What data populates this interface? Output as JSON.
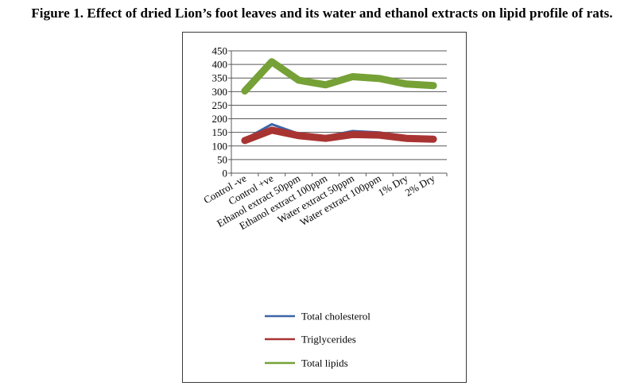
{
  "figure": {
    "title": "Figure 1. Effect of dried Lion’s foot leaves and its water and ethanol extracts on lipid profile of rats."
  },
  "chart_data": {
    "type": "line",
    "title": "",
    "xlabel": "",
    "ylabel": "",
    "categories": [
      "Control -ve",
      "Control +ve",
      "Ethanol extract 50ppm",
      "Ethanol extract 100ppm",
      "Water extract 50ppm",
      "Water extract 100ppm",
      "1% Dry",
      "2% Dry"
    ],
    "ylim": [
      0,
      450
    ],
    "yticks": [
      0,
      50,
      100,
      150,
      200,
      250,
      300,
      350,
      400,
      450
    ],
    "grid": "horizontal",
    "legend_position": "bottom",
    "series": [
      {
        "name": "Total cholesterol",
        "color": "#3c64a8",
        "values": [
          125,
          180,
          145,
          135,
          155,
          150,
          135,
          128
        ]
      },
      {
        "name": "Triglycerides",
        "color": "#a83432",
        "values": [
          120,
          158,
          138,
          128,
          142,
          140,
          128,
          125
        ]
      },
      {
        "name": "Total lipids",
        "color": "#76a137",
        "values": [
          302,
          410,
          342,
          325,
          355,
          348,
          328,
          322
        ]
      }
    ]
  }
}
